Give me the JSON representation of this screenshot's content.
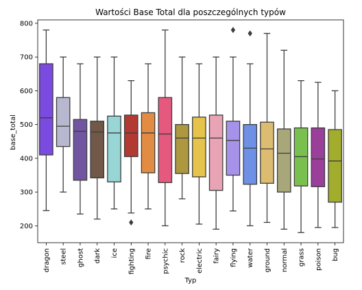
{
  "chart_data": {
    "type": "boxplot",
    "title": "Wartości Base Total dla poszczególnych typów",
    "xlabel": "Typ",
    "ylabel": "base_total",
    "ylim": [
      150,
      810
    ],
    "yticks": [
      200,
      300,
      400,
      500,
      600,
      700,
      800
    ],
    "grid": false,
    "legend": "none",
    "categories": [
      {
        "label": "dragon",
        "color": "#7b4ae0",
        "min": 245,
        "q1": 410,
        "median": 520,
        "q3": 680,
        "max": 780,
        "outliers": []
      },
      {
        "label": "steel",
        "color": "#b7b7cf",
        "min": 300,
        "q1": 435,
        "median": 495,
        "q3": 580,
        "max": 700,
        "outliers": []
      },
      {
        "label": "ghost",
        "color": "#7155a0",
        "min": 235,
        "q1": 335,
        "median": 480,
        "q3": 515,
        "max": 680,
        "outliers": []
      },
      {
        "label": "dark",
        "color": "#715848",
        "min": 220,
        "q1": 342,
        "median": 478,
        "q3": 510,
        "max": 700,
        "outliers": []
      },
      {
        "label": "ice",
        "color": "#98d5d5",
        "min": 250,
        "q1": 330,
        "median": 475,
        "q3": 525,
        "max": 700,
        "outliers": []
      },
      {
        "label": "fighting",
        "color": "#b23a33",
        "min": 238,
        "q1": 405,
        "median": 475,
        "q3": 528,
        "max": 630,
        "outliers": [
          210
        ]
      },
      {
        "label": "fire",
        "color": "#e28b43",
        "min": 250,
        "q1": 357,
        "median": 475,
        "q3": 535,
        "max": 680,
        "outliers": []
      },
      {
        "label": "psychic",
        "color": "#e5597f",
        "min": 200,
        "q1": 328,
        "median": 472,
        "q3": 580,
        "max": 780,
        "outliers": []
      },
      {
        "label": "rock",
        "color": "#ad9840",
        "min": 280,
        "q1": 355,
        "median": 460,
        "q3": 500,
        "max": 700,
        "outliers": []
      },
      {
        "label": "electric",
        "color": "#e6c34a",
        "min": 205,
        "q1": 345,
        "median": 460,
        "q3": 522,
        "max": 680,
        "outliers": []
      },
      {
        "label": "fairy",
        "color": "#e8a3b5",
        "min": 190,
        "q1": 305,
        "median": 460,
        "q3": 528,
        "max": 700,
        "outliers": []
      },
      {
        "label": "flying",
        "color": "#a792ea",
        "min": 244,
        "q1": 350,
        "median": 453,
        "q3": 510,
        "max": 700,
        "outliers": [
          780
        ]
      },
      {
        "label": "water",
        "color": "#6e91e6",
        "min": 200,
        "q1": 323,
        "median": 430,
        "q3": 500,
        "max": 680,
        "outliers": [
          770
        ]
      },
      {
        "label": "ground",
        "color": "#dcbc70",
        "min": 210,
        "q1": 326,
        "median": 428,
        "q3": 507,
        "max": 770,
        "outliers": []
      },
      {
        "label": "normal",
        "color": "#a8a77a",
        "min": 190,
        "q1": 300,
        "median": 415,
        "q3": 487,
        "max": 720,
        "outliers": []
      },
      {
        "label": "grass",
        "color": "#7ac04f",
        "min": 180,
        "q1": 318,
        "median": 405,
        "q3": 490,
        "max": 630,
        "outliers": []
      },
      {
        "label": "poison",
        "color": "#9a3f9a",
        "min": 195,
        "q1": 316,
        "median": 398,
        "q3": 490,
        "max": 625,
        "outliers": []
      },
      {
        "label": "bug",
        "color": "#a3ad2d",
        "min": 195,
        "q1": 270,
        "median": 392,
        "q3": 485,
        "max": 600,
        "outliers": []
      }
    ]
  }
}
